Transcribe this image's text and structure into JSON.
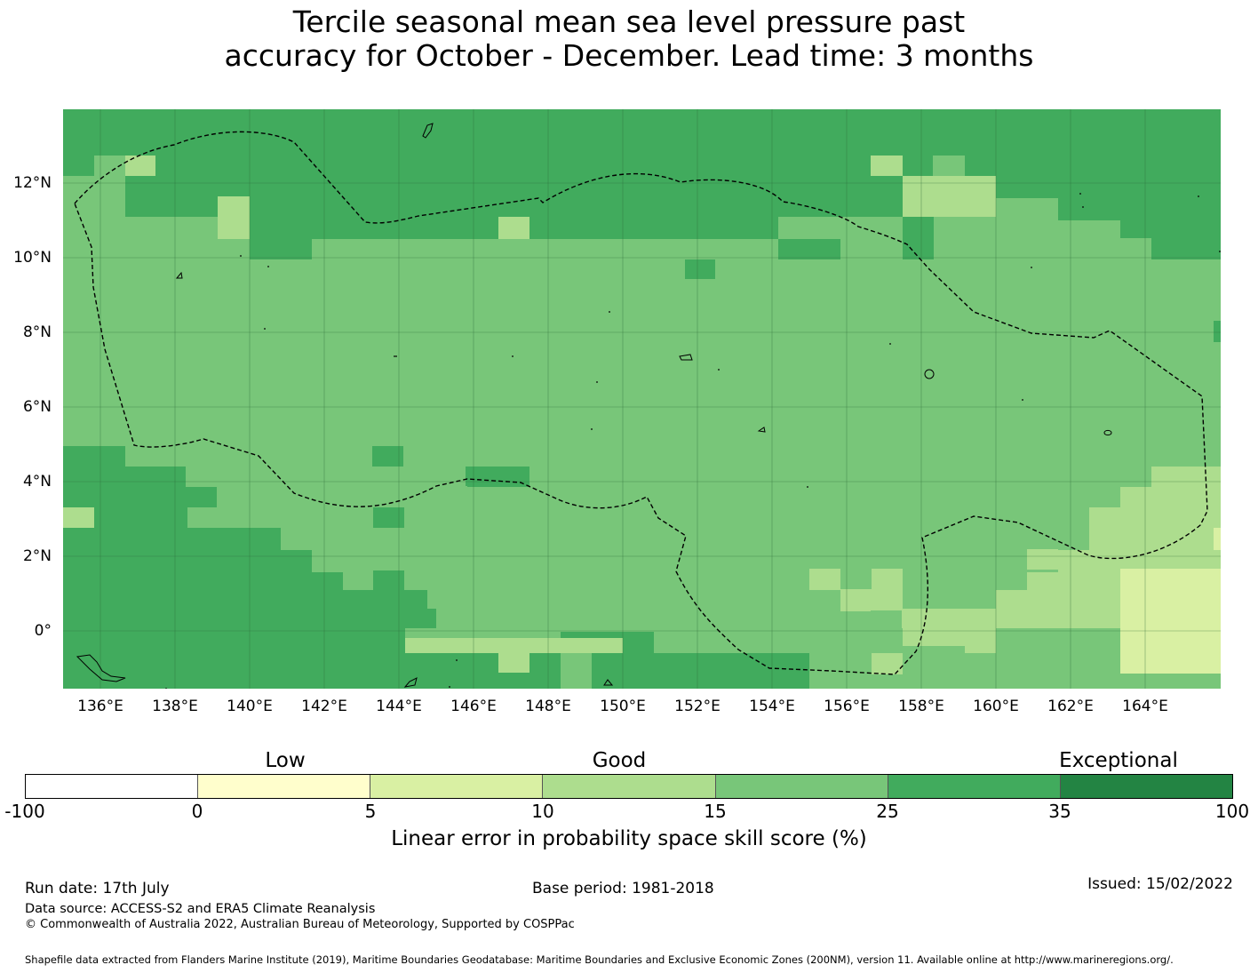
{
  "title": {
    "line1": "Tercile seasonal mean sea level pressure past",
    "line2": "accuracy for October - December. Lead time: 3 months"
  },
  "map": {
    "lon_labels": [
      "136°E",
      "138°E",
      "140°E",
      "142°E",
      "144°E",
      "146°E",
      "148°E",
      "150°E",
      "152°E",
      "154°E",
      "156°E",
      "158°E",
      "160°E",
      "162°E",
      "164°E"
    ],
    "lat_labels": [
      "12°N",
      "10°N",
      "8°N",
      "6°N",
      "4°N",
      "2°N",
      "0°"
    ],
    "colors": {
      "band_0_5": "#fffecc",
      "band_5_10": "#d9f0a3",
      "band_10_15": "#addd8e",
      "band_15_25": "#78c679",
      "band_25_35": "#41ab5d",
      "band_35_100": "#238443"
    }
  },
  "legend": {
    "categories": [
      "Low",
      "Good",
      "Exceptional"
    ],
    "ticks": [
      "-100",
      "0",
      "5",
      "10",
      "15",
      "25",
      "35",
      "100"
    ],
    "segment_colors": [
      "#ffffff",
      "#fffecc",
      "#d9f0a3",
      "#addd8e",
      "#78c679",
      "#41ab5d",
      "#238443"
    ],
    "label": "Linear error in probability space skill score (%)"
  },
  "footer": {
    "run_date": "Run date: 17th July",
    "base_period": "Base period: 1981-2018",
    "issued": "Issued: 15/02/2022",
    "data_source": "Data source: ACCESS-S2 and ERA5 Climate Reanalysis",
    "copyright": "© Commonwealth of Australia 2022, Australian Bureau of Meteorology, Supported by COSPPac",
    "shapefile": "Shapefile data extracted from Flanders Marine Institute (2019), Maritime Boundaries Geodatabase: Maritime Boundaries and Exclusive Economic Zones (200NM), version 11. Available online at http://www.marineregions.org/."
  }
}
